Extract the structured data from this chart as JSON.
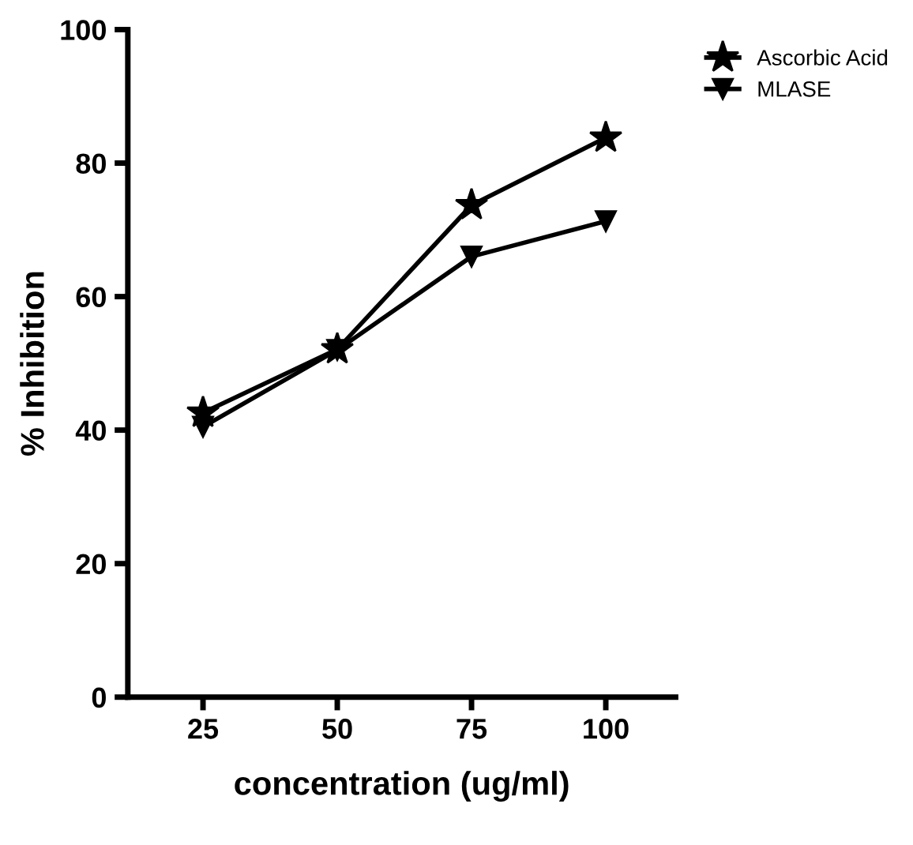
{
  "chart_data": {
    "type": "line",
    "xlabel": "concentration (ug/ml)",
    "ylabel": "% Inhibition",
    "x": [
      25,
      50,
      75,
      100
    ],
    "xlim": [
      11,
      113
    ],
    "xticks": [
      25,
      50,
      75,
      100
    ],
    "ylim": [
      0,
      100
    ],
    "yticks": [
      0,
      20,
      40,
      60,
      80,
      100
    ],
    "grid": false,
    "legend": "top right",
    "line_style": "solid",
    "series": [
      {
        "name": "Ascorbic Acid",
        "color": "#000000",
        "marker": "star",
        "values": [
          42.6,
          52.1,
          73.7,
          83.8
        ]
      },
      {
        "name": "MLASE",
        "color": "#000000",
        "marker": "triangle",
        "values": [
          40.5,
          52,
          66,
          71.3
        ]
      }
    ]
  }
}
